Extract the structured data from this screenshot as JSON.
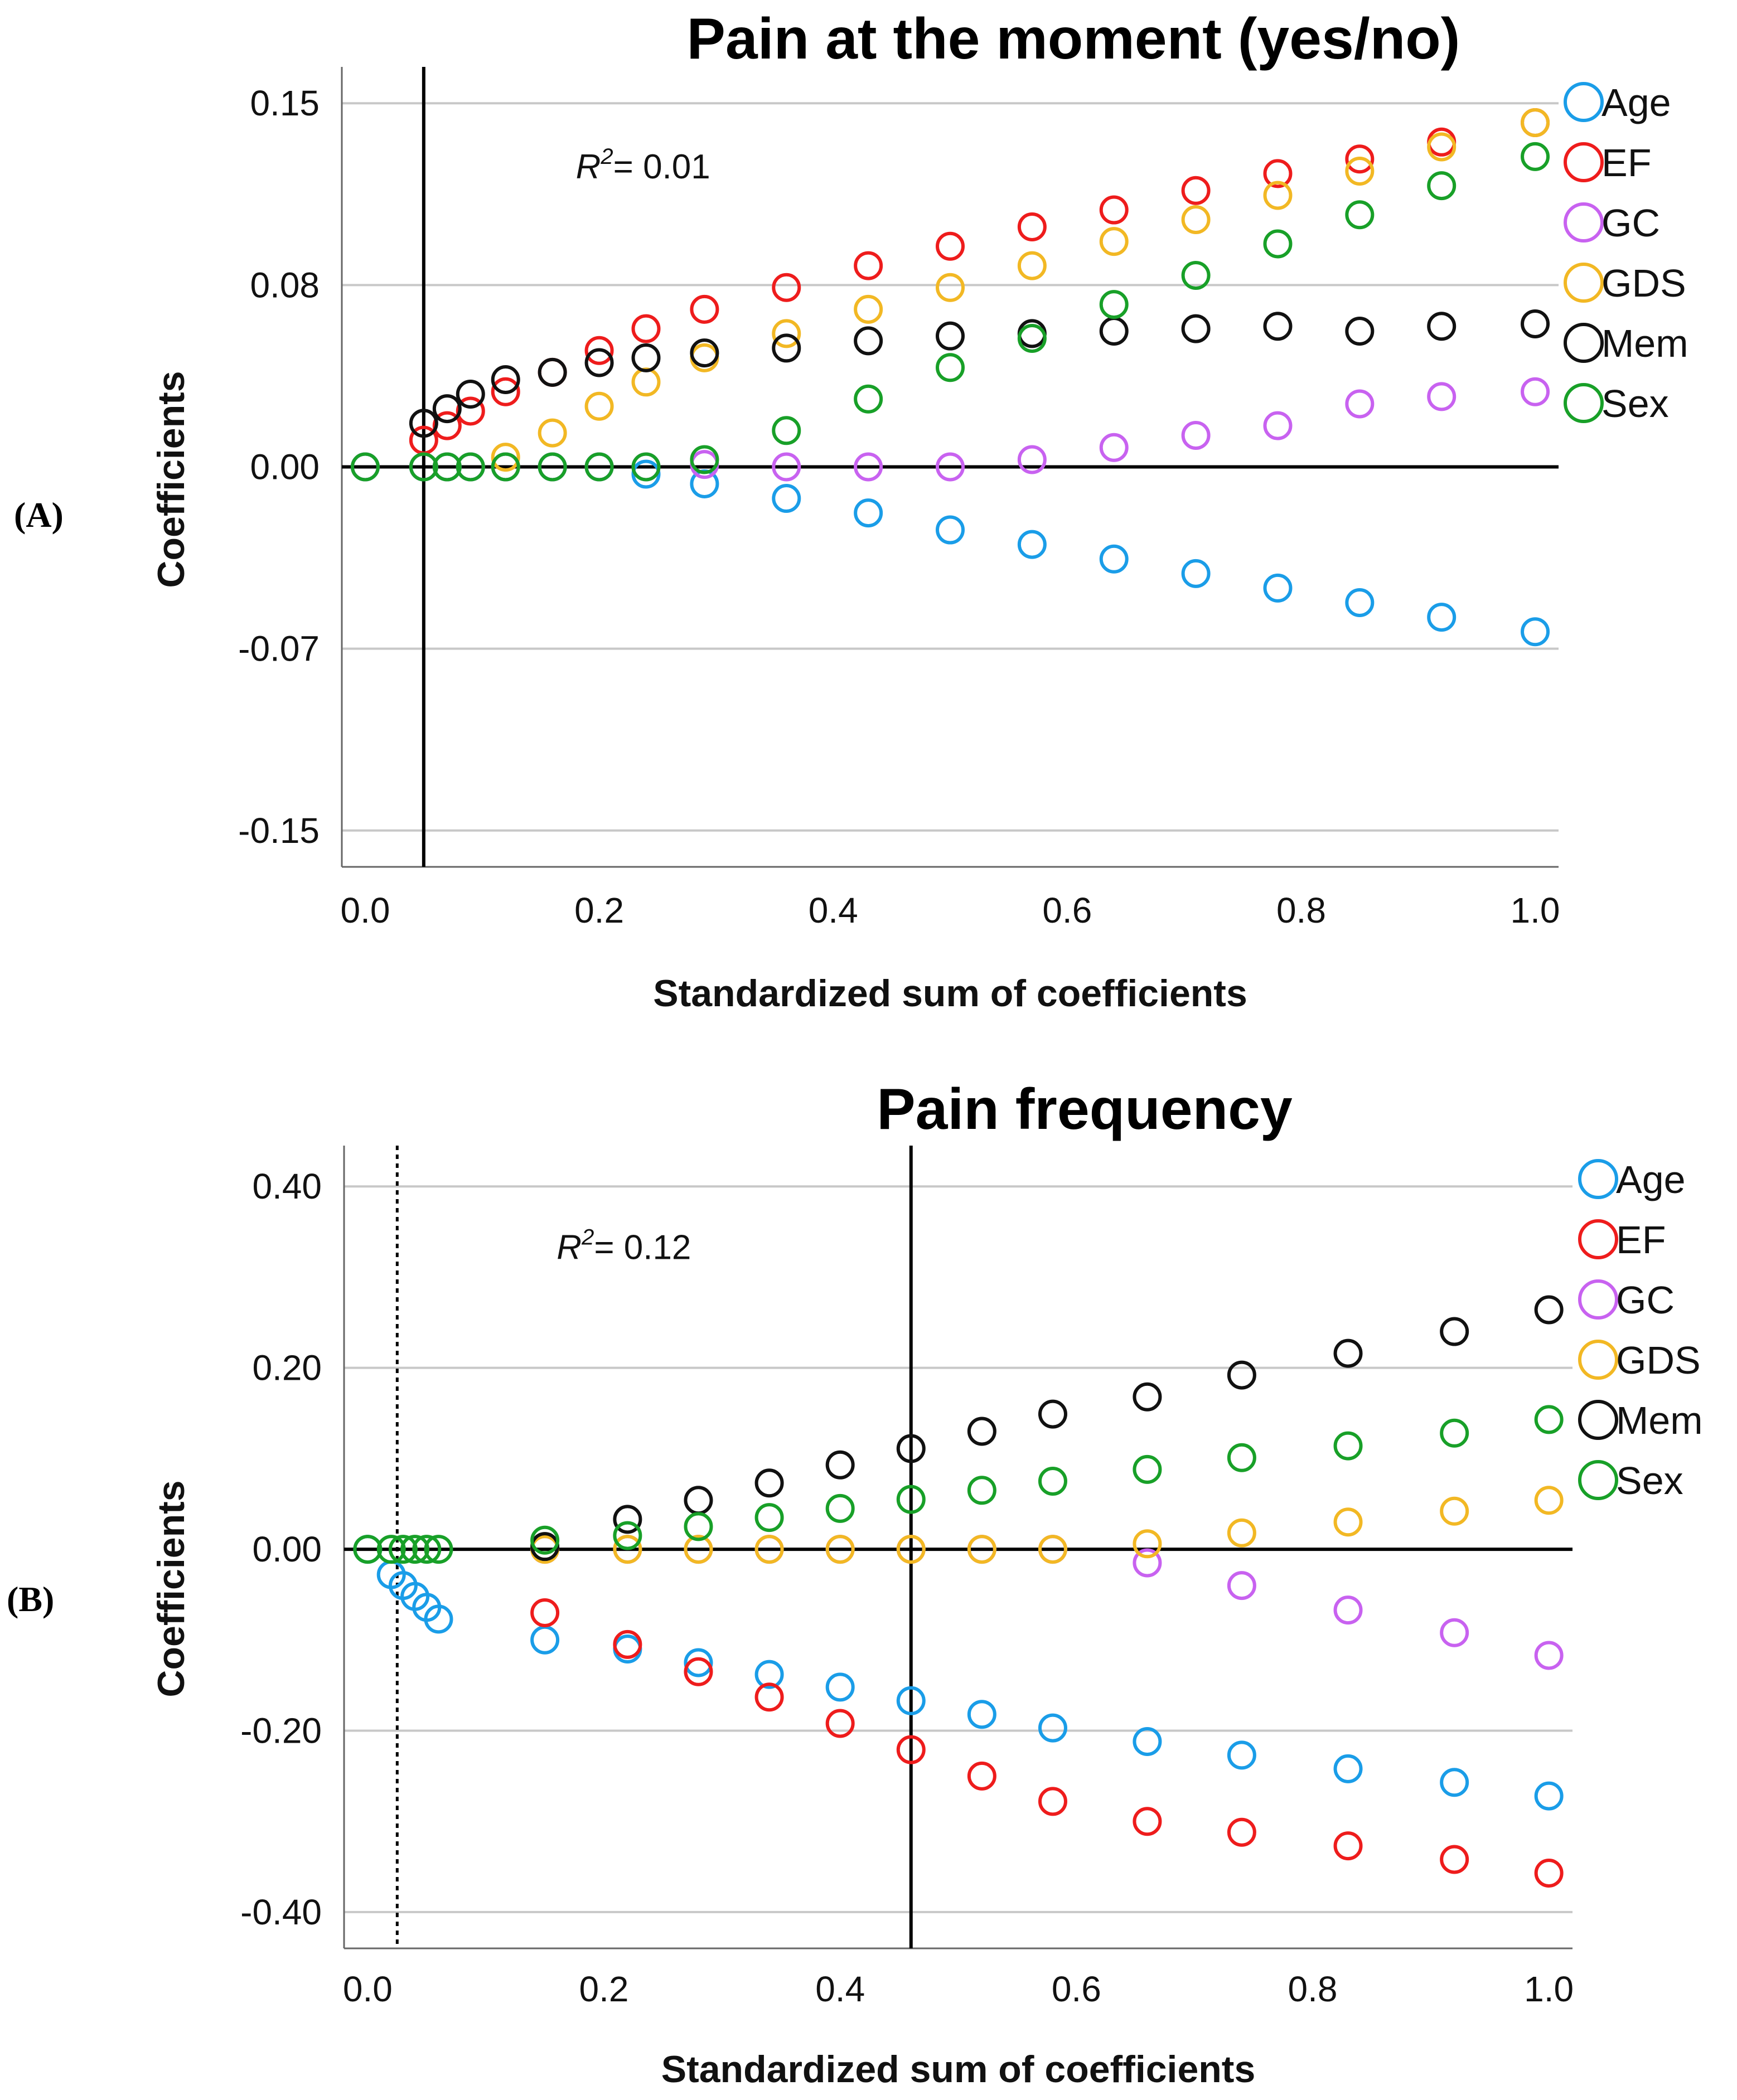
{
  "chart_data": [
    {
      "panel_label": "(A)",
      "type": "scatter",
      "title": "Pain at the moment (yes/no)",
      "xlabel": "Standardized sum of coefficients",
      "ylabel": "Coefficients",
      "xlim": [
        -0.02,
        1.02
      ],
      "ylim": [
        -0.165,
        0.165
      ],
      "x_ticks": [
        "0.0",
        "0.2",
        "0.4",
        "0.6",
        "0.8",
        "1.0"
      ],
      "x_tick_values": [
        0,
        0.2,
        0.4,
        0.6,
        0.8,
        1.0
      ],
      "y_ticks": [
        "0.15",
        "0.08",
        "0.00",
        "-0.07",
        "-0.15"
      ],
      "y_tick_values": [
        0.15,
        0.075,
        0,
        -0.075,
        -0.15
      ],
      "grid": true,
      "legend_position": "right",
      "annotation": {
        "R": "R",
        "sup": "2",
        "rest": "= 0.01",
        "x": 0.18,
        "y": 0.119
      },
      "reference_lines": [
        {
          "orientation": "vertical",
          "x": 0.05,
          "style": "solid"
        },
        {
          "orientation": "horizontal",
          "y": 0,
          "style": "solid"
        }
      ],
      "series": [
        {
          "name": "Age",
          "color": "#1a9de8",
          "x": [
            0,
            0.05,
            0.07,
            0.09,
            0.12,
            0.16,
            0.2,
            0.24,
            0.29,
            0.36,
            0.43,
            0.5,
            0.57,
            0.64,
            0.71,
            0.78,
            0.85,
            0.92,
            1.0
          ],
          "y": [
            0,
            0,
            0,
            0,
            0,
            0,
            0,
            -0.003,
            -0.007,
            -0.013,
            -0.019,
            -0.026,
            -0.032,
            -0.038,
            -0.044,
            -0.05,
            -0.056,
            -0.062,
            -0.068
          ]
        },
        {
          "name": "EF",
          "color": "#ee1c1c",
          "x": [
            0.05,
            0.07,
            0.09,
            0.12,
            0.16,
            0.2,
            0.24,
            0.29,
            0.36,
            0.43,
            0.5,
            0.57,
            0.64,
            0.71,
            0.78,
            0.85,
            0.92,
            1.0
          ],
          "y": [
            0.011,
            0.017,
            0.023,
            0.031,
            0.039,
            0.048,
            0.057,
            0.065,
            0.074,
            0.083,
            0.091,
            0.099,
            0.106,
            0.114,
            0.121,
            0.127,
            0.134,
            0.142
          ]
        },
        {
          "name": "GC",
          "color": "#c862f0",
          "x": [
            0,
            0.05,
            0.07,
            0.09,
            0.12,
            0.16,
            0.2,
            0.24,
            0.29,
            0.36,
            0.43,
            0.5,
            0.57,
            0.64,
            0.71,
            0.78,
            0.85,
            0.92,
            1.0
          ],
          "y": [
            0,
            0,
            0,
            0,
            0,
            0,
            0,
            0,
            0.001,
            0,
            0,
            0,
            0.003,
            0.008,
            0.013,
            0.017,
            0.026,
            0.029,
            0.031
          ]
        },
        {
          "name": "GDS",
          "color": "#f2b824",
          "x": [
            0.12,
            0.16,
            0.2,
            0.24,
            0.29,
            0.36,
            0.43,
            0.5,
            0.57,
            0.64,
            0.71,
            0.78,
            0.85,
            0.92,
            1.0
          ],
          "y": [
            0.004,
            0.014,
            0.025,
            0.035,
            0.045,
            0.055,
            0.065,
            0.074,
            0.083,
            0.093,
            0.102,
            0.112,
            0.122,
            0.132,
            0.142
          ]
        },
        {
          "name": "Mem",
          "color": "#111111",
          "x": [
            0.05,
            0.07,
            0.09,
            0.12,
            0.16,
            0.2,
            0.24,
            0.29,
            0.36,
            0.43,
            0.5,
            0.57,
            0.64,
            0.71,
            0.78,
            0.85,
            0.92,
            1.0
          ],
          "y": [
            0.018,
            0.024,
            0.03,
            0.036,
            0.039,
            0.043,
            0.045,
            0.047,
            0.049,
            0.052,
            0.054,
            0.055,
            0.056,
            0.057,
            0.058,
            0.056,
            0.058,
            0.059
          ]
        },
        {
          "name": "Sex",
          "color": "#18a028",
          "x": [
            0,
            0.05,
            0.07,
            0.09,
            0.12,
            0.16,
            0.2,
            0.24,
            0.29,
            0.36,
            0.43,
            0.5,
            0.57,
            0.64,
            0.71,
            0.78,
            0.85,
            0.92,
            1.0
          ],
          "y": [
            0,
            0,
            0,
            0,
            0,
            0,
            0,
            0,
            0.003,
            0.015,
            0.028,
            0.041,
            0.053,
            0.067,
            0.079,
            0.092,
            0.104,
            0.116,
            0.128
          ]
        }
      ]
    },
    {
      "panel_label": "(B)",
      "type": "scatter",
      "title": "Pain frequency",
      "xlabel": "Standardized sum of coefficients",
      "ylabel": "Coefficients",
      "xlim": [
        -0.02,
        1.02
      ],
      "ylim": [
        -0.44,
        0.445
      ],
      "x_ticks": [
        "0.0",
        "0.2",
        "0.4",
        "0.6",
        "0.8",
        "1.0"
      ],
      "x_tick_values": [
        0,
        0.2,
        0.4,
        0.6,
        0.8,
        1.0
      ],
      "y_ticks": [
        "0.40",
        "0.20",
        "0.00",
        "-0.20",
        "-0.40"
      ],
      "y_tick_values": [
        0.4,
        0.2,
        0,
        -0.2,
        -0.4
      ],
      "grid": true,
      "legend_position": "right",
      "annotation": {
        "R": "R",
        "sup": "2",
        "rest": "= 0.12",
        "x": 0.16,
        "y": 0.32
      },
      "reference_lines": [
        {
          "orientation": "vertical",
          "x": 0.025,
          "style": "dotted"
        },
        {
          "orientation": "vertical",
          "x": 0.46,
          "style": "solid"
        },
        {
          "orientation": "horizontal",
          "y": 0,
          "style": "solid"
        }
      ],
      "series": [
        {
          "name": "Age",
          "color": "#1a9de8",
          "x": [
            0,
            0.02,
            0.03,
            0.04,
            0.05,
            0.06,
            0.15,
            0.22,
            0.28,
            0.34,
            0.4,
            0.46,
            0.52,
            0.58,
            0.66,
            0.74,
            0.83,
            0.92,
            1.0
          ],
          "y": [
            0,
            -0.028,
            -0.04,
            -0.052,
            -0.064,
            -0.077,
            -0.1,
            -0.11,
            -0.125,
            -0.138,
            -0.152,
            -0.167,
            -0.182,
            -0.197,
            -0.212,
            -0.227,
            -0.242,
            -0.257,
            -0.272
          ]
        },
        {
          "name": "EF",
          "color": "#ee1c1c",
          "x": [
            0.15,
            0.22,
            0.28,
            0.34,
            0.4,
            0.46,
            0.52,
            0.58,
            0.66,
            0.74,
            0.83,
            0.92,
            1.0
          ],
          "y": [
            -0.07,
            -0.105,
            -0.135,
            -0.163,
            -0.192,
            -0.221,
            -0.25,
            -0.278,
            -0.3,
            -0.312,
            -0.327,
            -0.342,
            -0.357
          ]
        },
        {
          "name": "GC",
          "color": "#c862f0",
          "x": [
            0.15,
            0.22,
            0.28,
            0.34,
            0.4,
            0.46,
            0.52,
            0.58,
            0.66,
            0.74,
            0.83,
            0.92,
            1.0
          ],
          "y": [
            0,
            0,
            0,
            0,
            0,
            0,
            0,
            0,
            -0.015,
            -0.04,
            -0.067,
            -0.092,
            -0.117
          ]
        },
        {
          "name": "GDS",
          "color": "#f2b824",
          "x": [
            0.15,
            0.22,
            0.28,
            0.34,
            0.4,
            0.46,
            0.52,
            0.58,
            0.66,
            0.74,
            0.83,
            0.92,
            1.0
          ],
          "y": [
            0,
            0,
            0,
            0,
            0,
            0,
            0,
            0,
            0.006,
            0.018,
            0.03,
            0.042,
            0.054
          ]
        },
        {
          "name": "Mem",
          "color": "#111111",
          "x": [
            0.15,
            0.22,
            0.28,
            0.34,
            0.4,
            0.46,
            0.52,
            0.58,
            0.66,
            0.74,
            0.83,
            0.92,
            1.0
          ],
          "y": [
            0.003,
            0.033,
            0.054,
            0.073,
            0.093,
            0.111,
            0.13,
            0.149,
            0.168,
            0.192,
            0.216,
            0.24,
            0.264
          ]
        },
        {
          "name": "Sex",
          "color": "#18a028",
          "x": [
            0,
            0.02,
            0.03,
            0.04,
            0.05,
            0.06,
            0.15,
            0.22,
            0.28,
            0.34,
            0.4,
            0.46,
            0.52,
            0.58,
            0.66,
            0.74,
            0.83,
            0.92,
            1.0
          ],
          "y": [
            0,
            0,
            0,
            0,
            0,
            0,
            0.01,
            0.015,
            0.025,
            0.035,
            0.045,
            0.055,
            0.065,
            0.075,
            0.088,
            0.101,
            0.114,
            0.128,
            0.143
          ]
        }
      ]
    }
  ]
}
